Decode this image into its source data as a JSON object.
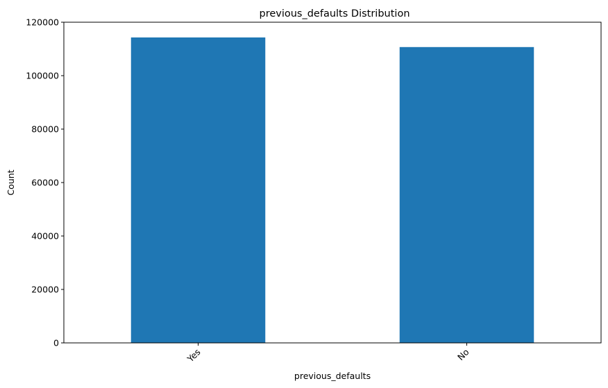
{
  "chart_data": {
    "type": "bar",
    "title": "previous_defaults Distribution",
    "xlabel": "previous_defaults",
    "ylabel": "Count",
    "categories": [
      "Yes",
      "No"
    ],
    "values": [
      114300,
      110700
    ],
    "ylim": [
      0,
      120000
    ],
    "yticks": [
      0,
      20000,
      40000,
      60000,
      80000,
      100000,
      120000
    ],
    "ytick_labels": [
      "0",
      "20000",
      "40000",
      "60000",
      "80000",
      "100000",
      "120000"
    ],
    "xtick_rotation_deg": 45,
    "bar_color": "#1f77b4",
    "grid": false,
    "legend": false
  }
}
